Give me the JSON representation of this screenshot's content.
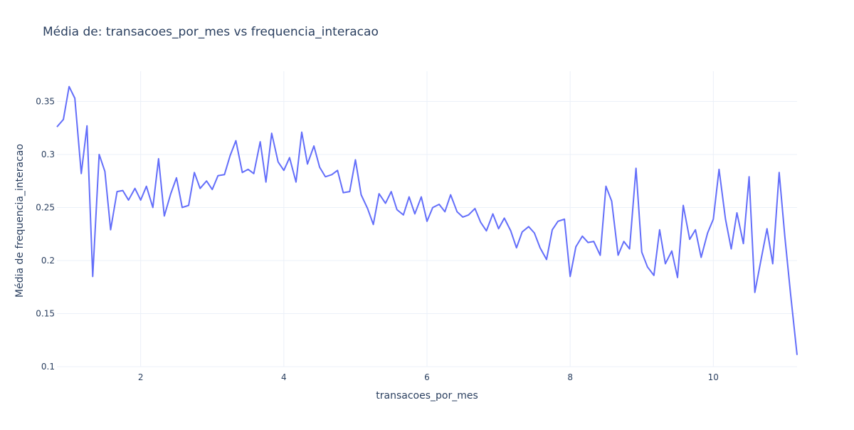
{
  "chart_data": {
    "type": "line",
    "title": "Média de: transacoes_por_mes vs frequencia_interacao",
    "xlabel": "transacoes_por_mes",
    "ylabel": "Média de frequencia_interacao",
    "xlim": [
      0.83,
      11.17
    ],
    "ylim": [
      0.1,
      0.3785
    ],
    "x_ticks": [
      2,
      4,
      6,
      8,
      10
    ],
    "y_ticks": [
      0.1,
      0.15,
      0.2,
      0.25,
      0.3,
      0.35
    ],
    "x_tick_labels": [
      "2",
      "4",
      "6",
      "8",
      "10"
    ],
    "y_tick_labels": [
      "0.1",
      "0.15",
      "0.2",
      "0.25",
      "0.3",
      "0.35"
    ],
    "grid": true,
    "legend": false,
    "colors": {
      "line": "#636efa",
      "grid": "#ebf0f8",
      "text": "#2a3f5f",
      "background": "#ffffff"
    },
    "series": [
      {
        "x": [
          0.83,
          0.92,
          1.0,
          1.08,
          1.17,
          1.25,
          1.33,
          1.42,
          1.5,
          1.58,
          1.67,
          1.75,
          1.83,
          1.92,
          2.0,
          2.08,
          2.17,
          2.25,
          2.33,
          2.42,
          2.5,
          2.58,
          2.67,
          2.75,
          2.83,
          2.92,
          3.0,
          3.08,
          3.17,
          3.25,
          3.33,
          3.42,
          3.5,
          3.58,
          3.67,
          3.75,
          3.83,
          3.92,
          4.0,
          4.08,
          4.17,
          4.25,
          4.33,
          4.42,
          4.5,
          4.58,
          4.67,
          4.75,
          4.83,
          4.92,
          5.0,
          5.08,
          5.17,
          5.25,
          5.33,
          5.42,
          5.5,
          5.58,
          5.67,
          5.75,
          5.83,
          5.92,
          6.0,
          6.08,
          6.17,
          6.25,
          6.33,
          6.42,
          6.5,
          6.58,
          6.67,
          6.75,
          6.83,
          6.92,
          7.0,
          7.08,
          7.17,
          7.25,
          7.33,
          7.42,
          7.5,
          7.58,
          7.67,
          7.75,
          7.83,
          7.92,
          8.0,
          8.08,
          8.17,
          8.25,
          8.33,
          8.42,
          8.5,
          8.58,
          8.67,
          8.75,
          8.83,
          8.92,
          9.0,
          9.08,
          9.17,
          9.25,
          9.33,
          9.42,
          9.5,
          9.58,
          9.67,
          9.75,
          9.83,
          9.92,
          10.0,
          10.08,
          10.17,
          10.25,
          10.33,
          10.42,
          10.5,
          10.58,
          10.67,
          10.75,
          10.83,
          10.92,
          11.0,
          11.08,
          11.17
        ],
        "y": [
          0.326,
          0.333,
          0.364,
          0.353,
          0.282,
          0.327,
          0.185,
          0.3,
          0.284,
          0.229,
          0.265,
          0.266,
          0.257,
          0.268,
          0.257,
          0.27,
          0.25,
          0.296,
          0.242,
          0.263,
          0.278,
          0.25,
          0.252,
          0.283,
          0.268,
          0.275,
          0.267,
          0.28,
          0.281,
          0.299,
          0.313,
          0.283,
          0.286,
          0.282,
          0.312,
          0.274,
          0.32,
          0.293,
          0.285,
          0.297,
          0.274,
          0.321,
          0.291,
          0.308,
          0.288,
          0.279,
          0.281,
          0.285,
          0.264,
          0.265,
          0.295,
          0.262,
          0.249,
          0.234,
          0.263,
          0.254,
          0.265,
          0.248,
          0.243,
          0.26,
          0.244,
          0.26,
          0.237,
          0.25,
          0.253,
          0.246,
          0.262,
          0.246,
          0.241,
          0.243,
          0.249,
          0.236,
          0.228,
          0.244,
          0.23,
          0.24,
          0.228,
          0.212,
          0.227,
          0.232,
          0.226,
          0.212,
          0.201,
          0.229,
          0.237,
          0.239,
          0.185,
          0.213,
          0.223,
          0.217,
          0.218,
          0.205,
          0.27,
          0.256,
          0.205,
          0.218,
          0.211,
          0.287,
          0.208,
          0.194,
          0.186,
          0.229,
          0.197,
          0.209,
          0.184,
          0.252,
          0.22,
          0.229,
          0.203,
          0.226,
          0.239,
          0.286,
          0.239,
          0.211,
          0.245,
          0.216,
          0.279,
          0.17,
          0.202,
          0.23,
          0.197,
          0.283,
          0.222,
          0.168,
          0.111
        ]
      }
    ]
  }
}
